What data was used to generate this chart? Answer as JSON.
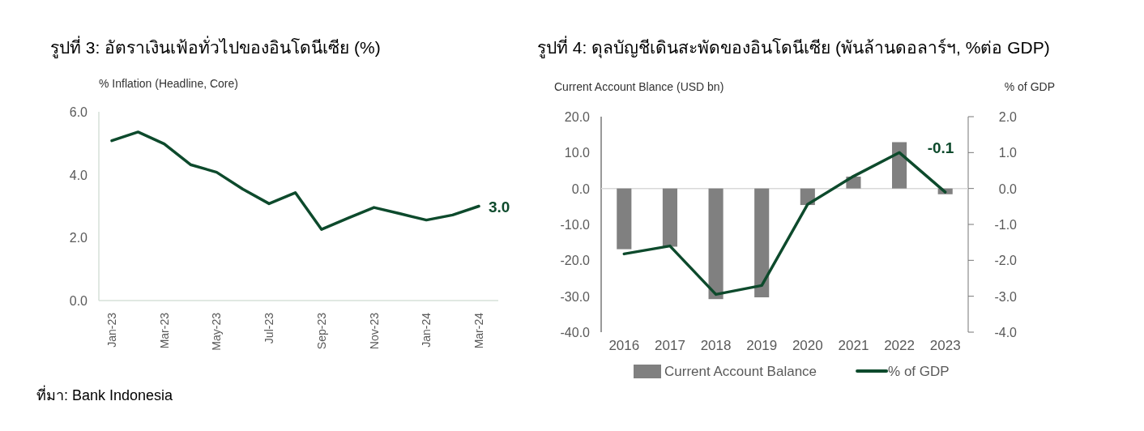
{
  "chart_data": [
    {
      "type": "line",
      "title": "รูปที่ 3: อัตราเงินเฟ้อทั่วไปของอินโดนีเซีย (%)",
      "ylabel": "% Inflation (Headline, Core)",
      "categories": [
        "Jan-23",
        null,
        "Mar-23",
        null,
        "May-23",
        null,
        "Jul-23",
        null,
        "Sep-23",
        null,
        "Nov-23",
        null,
        "Jan-24",
        null,
        "Mar-24"
      ],
      "series": [
        {
          "type": "line",
          "color": "#0d4a2c",
          "values": [
            5.08,
            5.36,
            4.98,
            4.32,
            4.08,
            3.54,
            3.08,
            3.43,
            2.26,
            2.62,
            2.96,
            2.76,
            2.56,
            2.72,
            3.0
          ],
          "value_labels": [
            null,
            null,
            null,
            null,
            null,
            null,
            null,
            null,
            null,
            null,
            null,
            null,
            null,
            null,
            "3.0"
          ]
        }
      ],
      "ylim": [
        0,
        6
      ],
      "yticks": [
        {
          "value": 0,
          "label": "0.0"
        },
        {
          "value": 2,
          "label": "2.0"
        },
        {
          "value": 4,
          "label": "4.0"
        },
        {
          "value": 6,
          "label": "6.0"
        }
      ],
      "annotations": [
        "ที่มา: Bank Indonesia"
      ]
    },
    {
      "type": "bar",
      "title": "รูปที่ 4: ดุลบัญชีเดินสะพัดของอินโดนีเซีย (พันล้านดอลาร์ฯ, %ต่อ GDP)",
      "ylabel": "Current Account Blance (USD bn)",
      "y2label": "% of GDP",
      "categories": [
        "2016",
        "2017",
        "2018",
        "2019",
        "2020",
        "2021",
        "2022",
        "2023"
      ],
      "series": [
        {
          "type": "bar",
          "name": "Current Account Balance",
          "color": "#808080",
          "values": [
            -16.9,
            -16.2,
            -30.8,
            -30.3,
            -4.6,
            3.3,
            12.9,
            -1.6
          ]
        },
        {
          "type": "line",
          "axis": "y2",
          "name": "% of GDP",
          "color": "#0d4a2c",
          "values": [
            -1.82,
            -1.6,
            -2.95,
            -2.7,
            -0.44,
            0.34,
            1.0,
            -0.1
          ],
          "value_labels": [
            null,
            null,
            null,
            null,
            null,
            null,
            null,
            "-0.1"
          ]
        }
      ],
      "ylim": [
        -40,
        20
      ],
      "yticks": [
        {
          "value": -40,
          "label": "-40.0"
        },
        {
          "value": -30,
          "label": "-30.0"
        },
        {
          "value": -20,
          "label": "-20.0"
        },
        {
          "value": -10,
          "label": "-10.0"
        },
        {
          "value": 0,
          "label": "0.0"
        },
        {
          "value": 10,
          "label": "10.0"
        },
        {
          "value": 20,
          "label": "20.0"
        }
      ],
      "y2lim": [
        -4,
        2
      ],
      "y2ticks": [
        {
          "value": -4,
          "label": "-4.0"
        },
        {
          "value": -3,
          "label": "-3.0"
        },
        {
          "value": -2,
          "label": "-2.0"
        },
        {
          "value": -1,
          "label": "-1.0"
        },
        {
          "value": 0,
          "label": "0.0"
        },
        {
          "value": 1,
          "label": "1.0"
        },
        {
          "value": 2,
          "label": "2.0"
        }
      ],
      "legend": "bottom"
    }
  ]
}
